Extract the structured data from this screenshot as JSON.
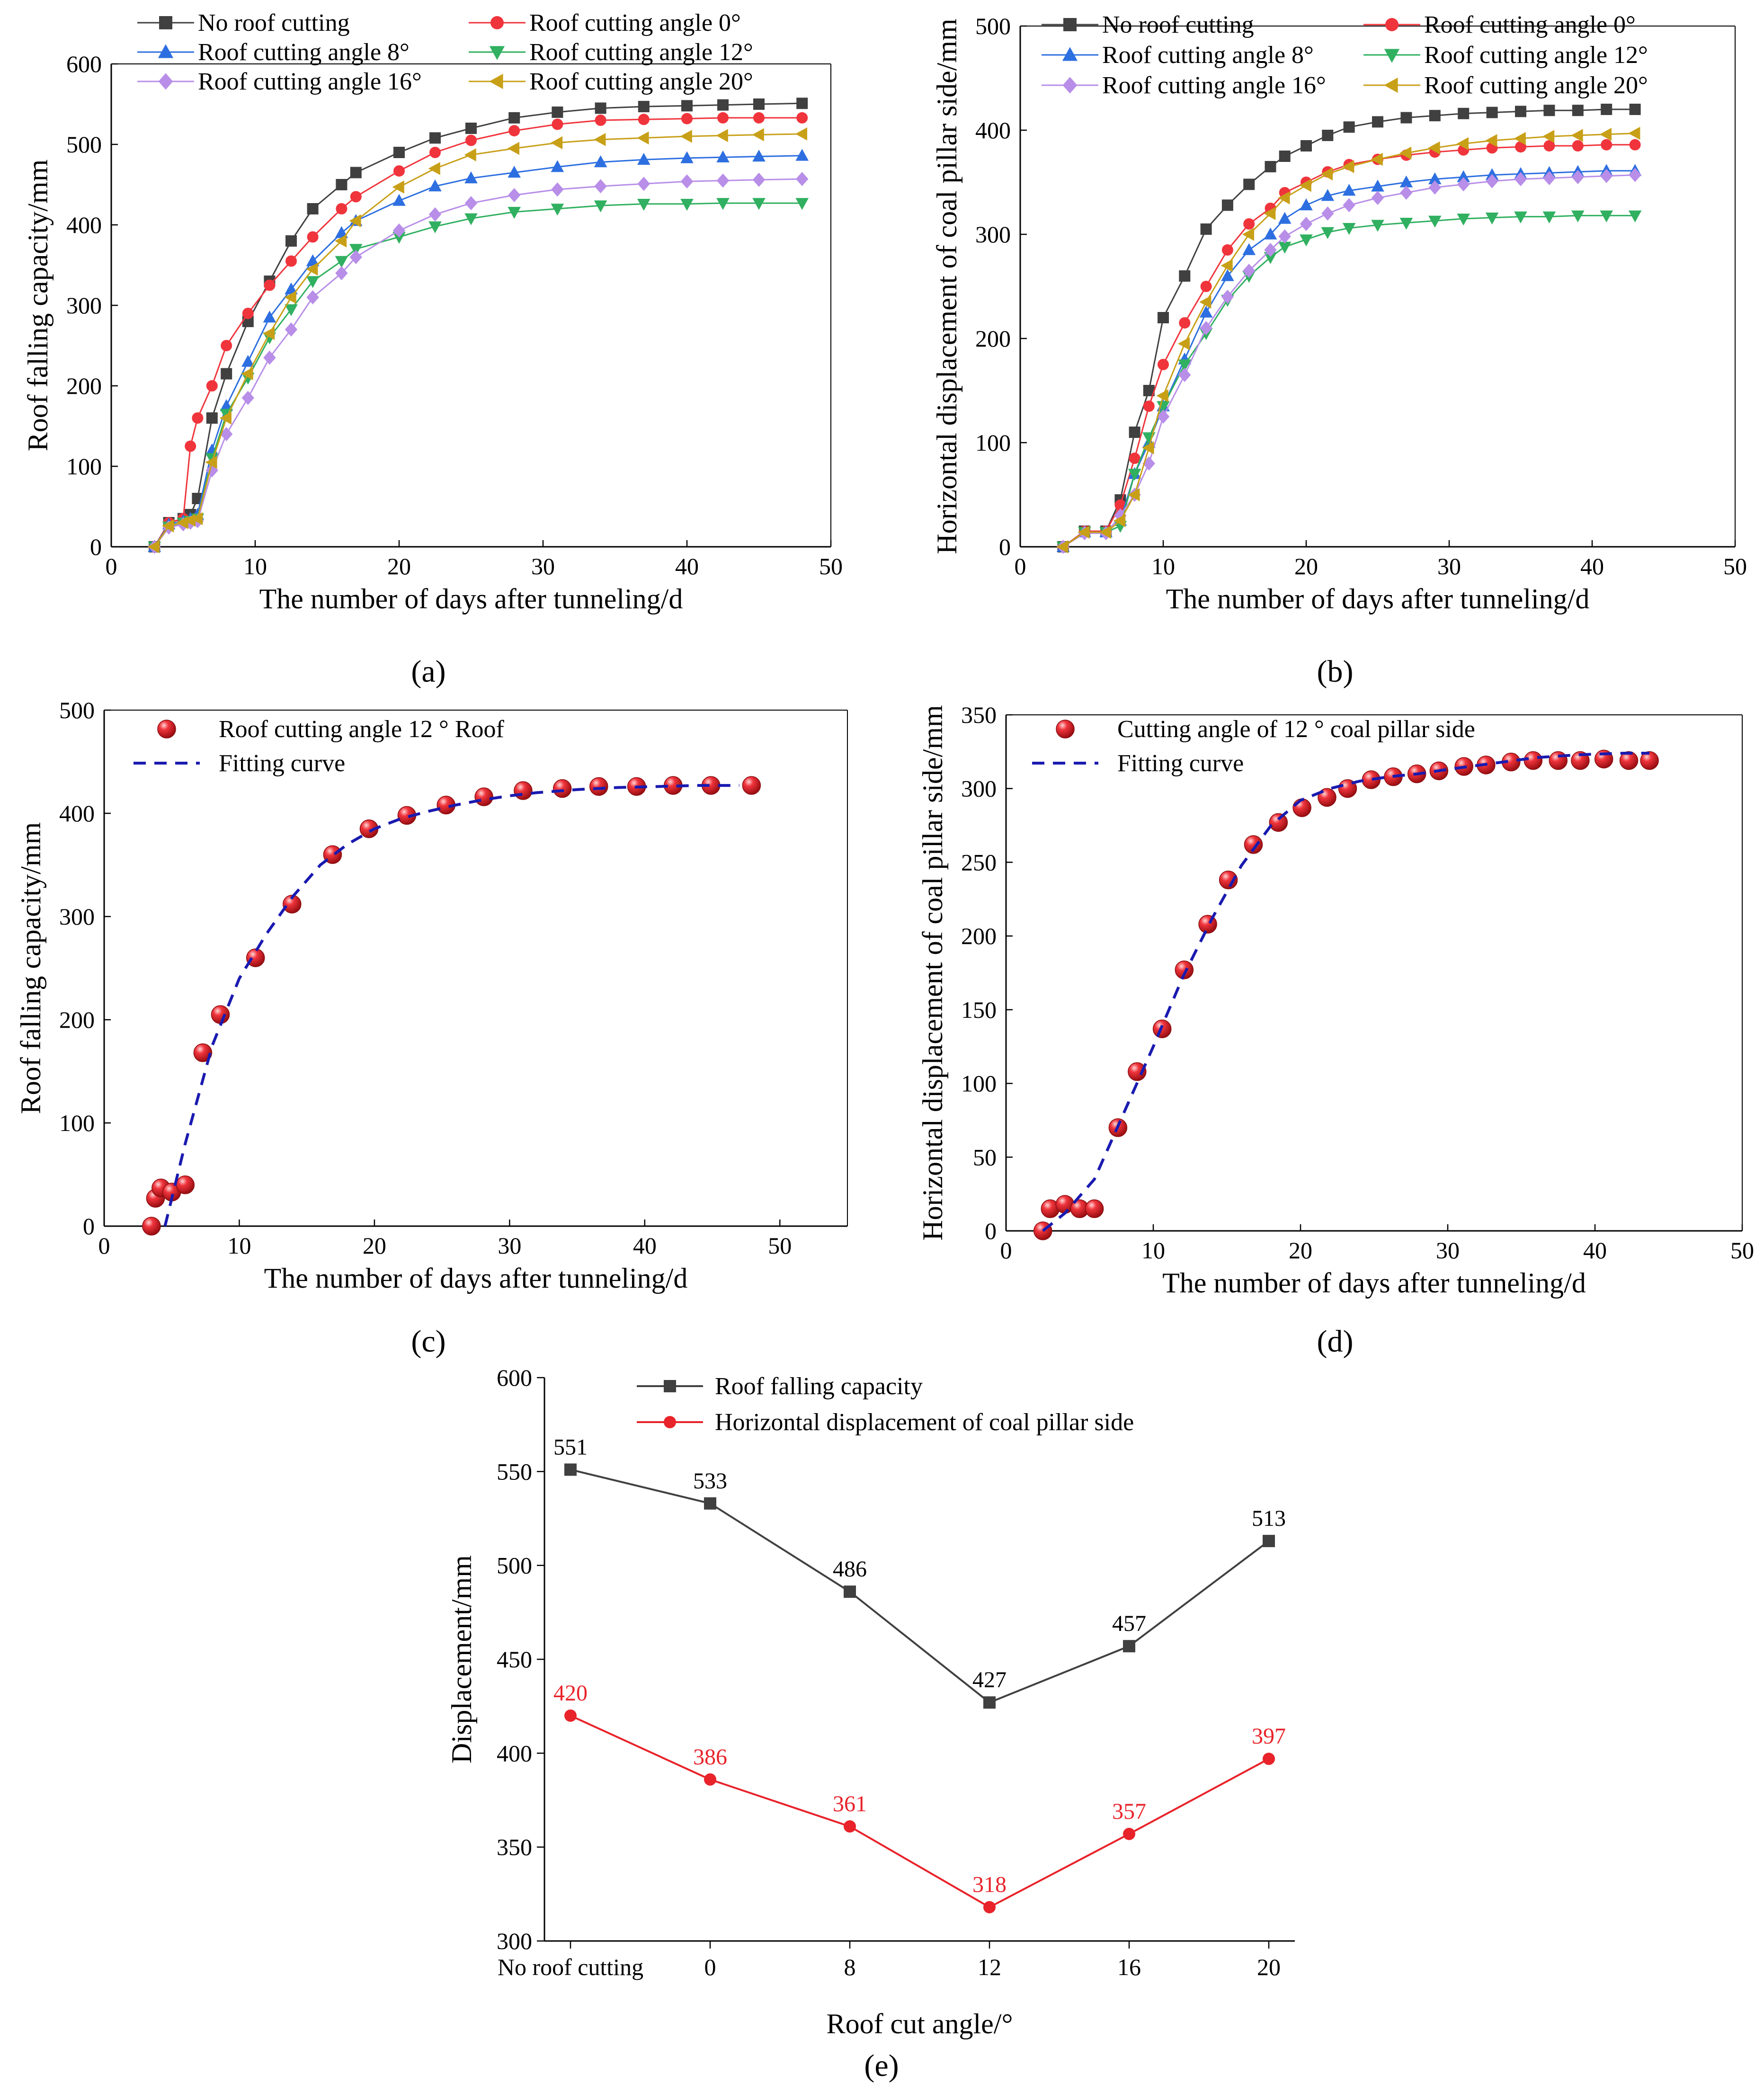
{
  "panel_labels": [
    "(a)",
    "(b)",
    "(c)",
    "(d)",
    "(e)"
  ],
  "chart_data": [
    {
      "id": "a",
      "type": "line",
      "xlabel": "The number of days after tunneling/d",
      "ylabel": "Roof falling capacity/mm",
      "xlim": [
        0,
        50
      ],
      "ylim": [
        0,
        600
      ],
      "xticks": [
        0,
        10,
        20,
        30,
        40,
        50
      ],
      "yticks": [
        0,
        100,
        200,
        300,
        400,
        500,
        600
      ],
      "legend_position": "top",
      "legend_columns": 2,
      "x": [
        3,
        4,
        5,
        5.5,
        6,
        7,
        8,
        9.5,
        11,
        12.5,
        14,
        16,
        17,
        20,
        22.5,
        25,
        28,
        31,
        34,
        37,
        40,
        42.5,
        45,
        48
      ],
      "series": [
        {
          "name": "No roof cutting",
          "color": "#404040",
          "marker": "square",
          "values": [
            0,
            30,
            35,
            40,
            60,
            160,
            215,
            280,
            330,
            380,
            420,
            450,
            465,
            490,
            508,
            520,
            533,
            540,
            545,
            547,
            548,
            549,
            550,
            551
          ]
        },
        {
          "name": "Roof cutting angle 0°",
          "color": "#f0343c",
          "marker": "circle",
          "values": [
            0,
            30,
            35,
            125,
            160,
            200,
            250,
            290,
            325,
            355,
            385,
            420,
            435,
            467,
            490,
            505,
            517,
            525,
            530,
            531,
            532,
            533,
            533,
            533
          ]
        },
        {
          "name": "Roof cutting angle 8°",
          "color": "#2d6fe0",
          "marker": "triangle-up",
          "values": [
            0,
            28,
            32,
            35,
            40,
            120,
            175,
            230,
            285,
            320,
            355,
            390,
            405,
            430,
            448,
            458,
            465,
            472,
            478,
            481,
            483,
            484,
            485,
            486
          ]
        },
        {
          "name": "Roof cutting angle 12°",
          "color": "#30b060",
          "marker": "triangle-down",
          "values": [
            0,
            25,
            30,
            32,
            35,
            110,
            165,
            210,
            260,
            295,
            330,
            355,
            370,
            385,
            398,
            408,
            416,
            420,
            424,
            426,
            426,
            427,
            427,
            427
          ]
        },
        {
          "name": "Roof cutting angle 16°",
          "color": "#b88ee8",
          "marker": "diamond",
          "values": [
            0,
            24,
            28,
            30,
            32,
            95,
            140,
            185,
            235,
            270,
            310,
            340,
            360,
            393,
            413,
            427,
            437,
            444,
            448,
            451,
            454,
            455,
            456,
            457
          ]
        },
        {
          "name": "Roof cutting angle 20°",
          "color": "#c8a018",
          "marker": "triangle-left",
          "values": [
            0,
            26,
            30,
            33,
            35,
            105,
            160,
            215,
            265,
            310,
            345,
            380,
            405,
            447,
            470,
            487,
            495,
            502,
            506,
            508,
            510,
            511,
            512,
            513
          ]
        }
      ]
    },
    {
      "id": "b",
      "type": "line",
      "xlabel": "The number of days after tunneling/d",
      "ylabel": "Horizontal displacement of coal pillar side/mm",
      "xlim": [
        0,
        50
      ],
      "ylim": [
        0,
        500
      ],
      "xticks": [
        0,
        10,
        20,
        30,
        40,
        50
      ],
      "yticks": [
        0,
        100,
        200,
        300,
        400,
        500
      ],
      "legend_position": "top",
      "legend_columns": 2,
      "x": [
        3,
        4.5,
        6,
        7,
        8,
        9,
        10,
        11.5,
        13,
        14.5,
        16,
        17.5,
        18.5,
        20,
        21.5,
        23,
        25,
        27,
        29,
        31,
        33,
        35,
        37,
        39,
        41,
        43
      ],
      "series": [
        {
          "name": "No roof cutting",
          "color": "#404040",
          "marker": "square",
          "values": [
            0,
            15,
            15,
            45,
            110,
            150,
            220,
            260,
            305,
            328,
            348,
            365,
            375,
            385,
            395,
            403,
            408,
            412,
            414,
            416,
            417,
            418,
            419,
            419,
            420,
            420
          ]
        },
        {
          "name": "Roof cutting angle 0°",
          "color": "#f0343c",
          "marker": "circle",
          "values": [
            0,
            15,
            15,
            40,
            85,
            135,
            175,
            215,
            250,
            285,
            310,
            325,
            340,
            350,
            360,
            367,
            372,
            376,
            379,
            381,
            383,
            384,
            385,
            385,
            386,
            386
          ]
        },
        {
          "name": "Roof cutting angle 8°",
          "color": "#2d6fe0",
          "marker": "triangle-up",
          "values": [
            0,
            14,
            14,
            25,
            70,
            100,
            135,
            180,
            225,
            260,
            285,
            300,
            315,
            328,
            337,
            342,
            346,
            350,
            353,
            355,
            357,
            358,
            359,
            360,
            361,
            361
          ]
        },
        {
          "name": "Roof cutting angle 12°",
          "color": "#30b060",
          "marker": "triangle-down",
          "values": [
            0,
            14,
            14,
            20,
            70,
            105,
            135,
            175,
            205,
            237,
            260,
            278,
            288,
            295,
            302,
            306,
            309,
            311,
            313,
            315,
            316,
            317,
            317,
            318,
            318,
            318
          ]
        },
        {
          "name": "Roof cutting angle 16°",
          "color": "#b88ee8",
          "marker": "diamond",
          "values": [
            0,
            13,
            13,
            30,
            50,
            80,
            125,
            165,
            210,
            240,
            265,
            285,
            298,
            310,
            320,
            328,
            335,
            340,
            345,
            348,
            351,
            353,
            354,
            355,
            356,
            357
          ]
        },
        {
          "name": "Roof cutting angle 20°",
          "color": "#c8a018",
          "marker": "triangle-left",
          "values": [
            0,
            14,
            14,
            25,
            50,
            95,
            145,
            195,
            235,
            270,
            300,
            320,
            335,
            347,
            358,
            365,
            372,
            378,
            383,
            387,
            390,
            392,
            394,
            395,
            396,
            397
          ]
        }
      ]
    },
    {
      "id": "c",
      "type": "scatter",
      "xlabel": "The number of days after tunneling/d",
      "ylabel": "Roof falling capacity/mm",
      "xlim": [
        0,
        55
      ],
      "ylim": [
        0,
        500
      ],
      "xticks": [
        0,
        10,
        20,
        30,
        40,
        50
      ],
      "yticks": [
        0,
        100,
        200,
        300,
        400,
        500
      ],
      "legend_position": "top-left",
      "series": [
        {
          "name": "Roof cutting angle 12 ° Roof",
          "color": "#e8232a",
          "marker": "sphere",
          "x": [
            3.5,
            3.8,
            4.2,
            5,
            6,
            7.3,
            8.6,
            11.2,
            13.9,
            16.9,
            19.6,
            22.4,
            25.3,
            28.1,
            31,
            33.9,
            36.6,
            39.4,
            42.1,
            44.9,
            47.9
          ],
          "values": [
            0,
            27,
            37,
            33,
            40,
            168,
            205,
            260,
            312,
            360,
            385,
            398,
            408,
            416,
            422,
            424,
            426,
            426,
            427,
            427,
            427
          ]
        },
        {
          "name": "Fitting curve",
          "color": "#1a1ab0",
          "line": "dashed",
          "x": [
            4.5,
            6,
            8,
            10,
            12,
            14,
            16,
            18,
            20,
            22,
            24,
            26,
            28,
            30,
            32,
            35,
            38,
            41,
            44,
            47
          ],
          "values": [
            0,
            80,
            175,
            240,
            283,
            320,
            350,
            370,
            385,
            395,
            402,
            408,
            413,
            417,
            420,
            423,
            425,
            426,
            427,
            427
          ]
        }
      ]
    },
    {
      "id": "d",
      "type": "scatter",
      "xlabel": "The number of days after tunneling/d",
      "ylabel": "Horizontal displacement of coal pillar side/mm",
      "xlim": [
        0,
        50
      ],
      "ylim": [
        0,
        350
      ],
      "xticks": [
        0,
        10,
        20,
        30,
        40,
        50
      ],
      "yticks": [
        0,
        50,
        100,
        150,
        200,
        250,
        300,
        350
      ],
      "legend_position": "top-left",
      "series": [
        {
          "name": "Cutting angle of 12 ° coal pillar side",
          "color": "#e8232a",
          "marker": "sphere",
          "x": [
            2.5,
            3,
            4,
            5,
            6,
            7.6,
            8.9,
            10.6,
            12.1,
            13.7,
            15.1,
            16.8,
            18.5,
            20.1,
            21.8,
            23.2,
            24.8,
            26.3,
            27.9,
            29.4,
            31.1,
            32.6,
            34.3,
            35.8,
            37.5,
            39,
            40.6,
            42.3,
            43.7
          ],
          "values": [
            0,
            15,
            18,
            15,
            15,
            70,
            108,
            137,
            177,
            208,
            238,
            262,
            277,
            287,
            294,
            300,
            306,
            308,
            310,
            312,
            315,
            316,
            318,
            319,
            319,
            319,
            320,
            319,
            319
          ]
        },
        {
          "name": "Fitting curve",
          "color": "#1a1ab0",
          "line": "dashed",
          "x": [
            2.5,
            4,
            6,
            8,
            10,
            12,
            14,
            16,
            18,
            20,
            22,
            24,
            26,
            28,
            30,
            33,
            36,
            39,
            42,
            43.7
          ],
          "values": [
            0,
            12,
            35,
            80,
            125,
            172,
            212,
            248,
            275,
            292,
            300,
            305,
            308,
            310,
            313,
            317,
            321,
            323,
            324,
            324
          ]
        }
      ]
    },
    {
      "id": "e",
      "type": "line",
      "xlabel": "Roof cut angle/°",
      "ylabel": "Displacement/mm",
      "ylim": [
        300,
        600
      ],
      "yticks": [
        300,
        350,
        400,
        450,
        500,
        550,
        600
      ],
      "categories": [
        "No roof cutting",
        "0",
        "8",
        "12",
        "16",
        "20"
      ],
      "legend_position": "top",
      "series": [
        {
          "name": "Roof falling capacity",
          "color": "#404040",
          "marker": "square",
          "values": [
            551,
            533,
            486,
            427,
            457,
            513
          ]
        },
        {
          "name": "Horizontal displacement of coal pillar side",
          "color": "#e8232a",
          "marker": "circle",
          "values": [
            420,
            386,
            361,
            318,
            357,
            397
          ]
        }
      ]
    }
  ]
}
